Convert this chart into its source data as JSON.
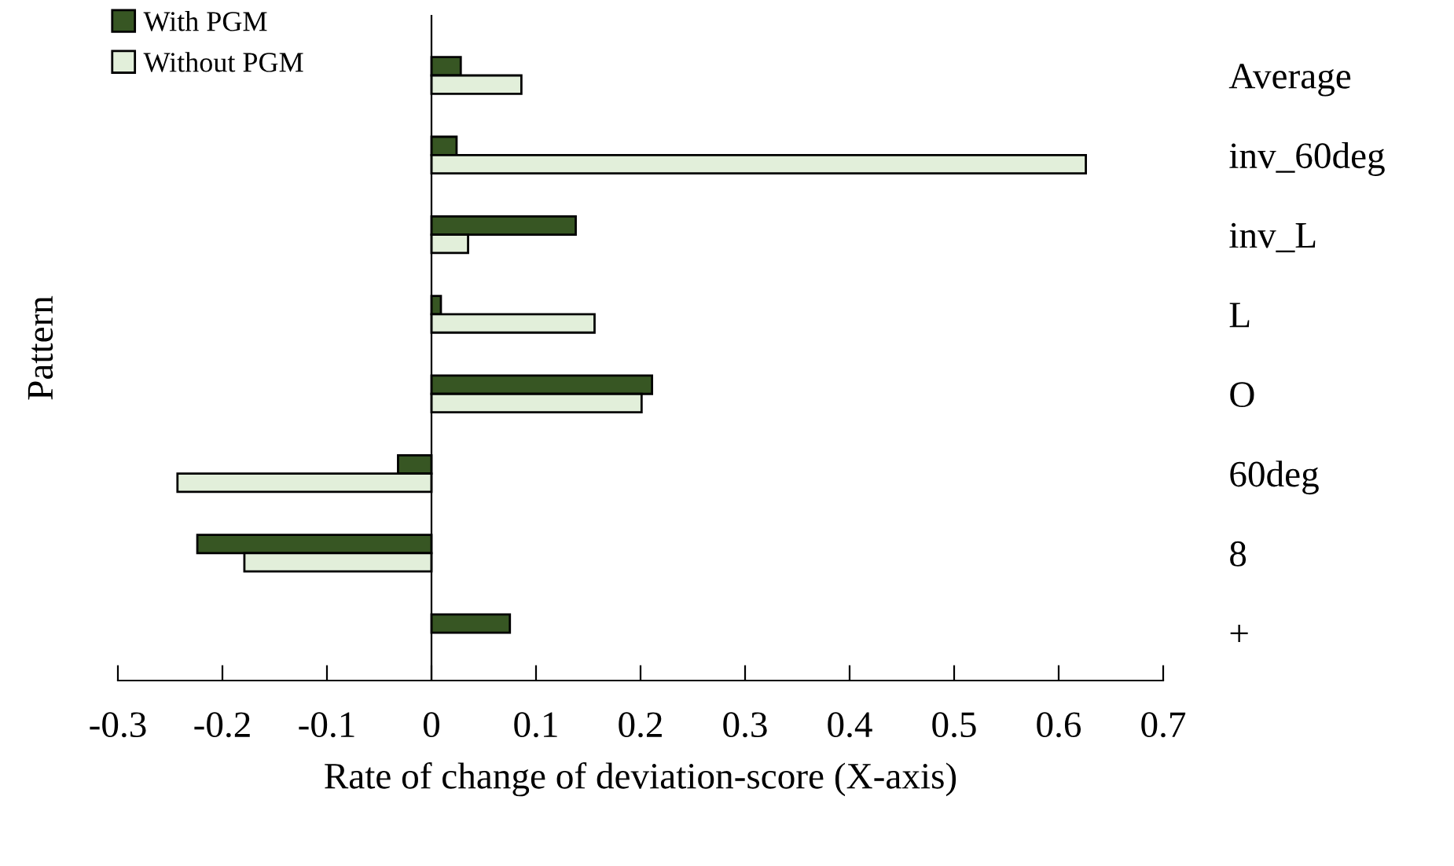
{
  "chart_data": {
    "type": "bar",
    "orientation": "horizontal",
    "xlabel": "Rate of change of deviation-score (X-axis)",
    "ylabel": "Pattern",
    "categories": [
      "Average",
      "inv_60deg",
      "inv_L",
      "L",
      "O",
      "60deg",
      "8",
      "+"
    ],
    "series": [
      {
        "name": "With PGM",
        "color": "#375623",
        "values": [
          0.028,
          0.024,
          0.138,
          0.009,
          0.211,
          -0.032,
          -0.224,
          0.075
        ]
      },
      {
        "name": "Without PGM",
        "color": "#e2efda",
        "values": [
          0.086,
          0.626,
          0.035,
          0.156,
          0.201,
          -0.243,
          -0.179,
          null
        ]
      }
    ],
    "xlim": [
      -0.3,
      0.7
    ],
    "xticks": [
      -0.3,
      -0.2,
      -0.1,
      0,
      0.1,
      0.2,
      0.3,
      0.4,
      0.5,
      0.6,
      0.7
    ],
    "legend": "top left"
  }
}
